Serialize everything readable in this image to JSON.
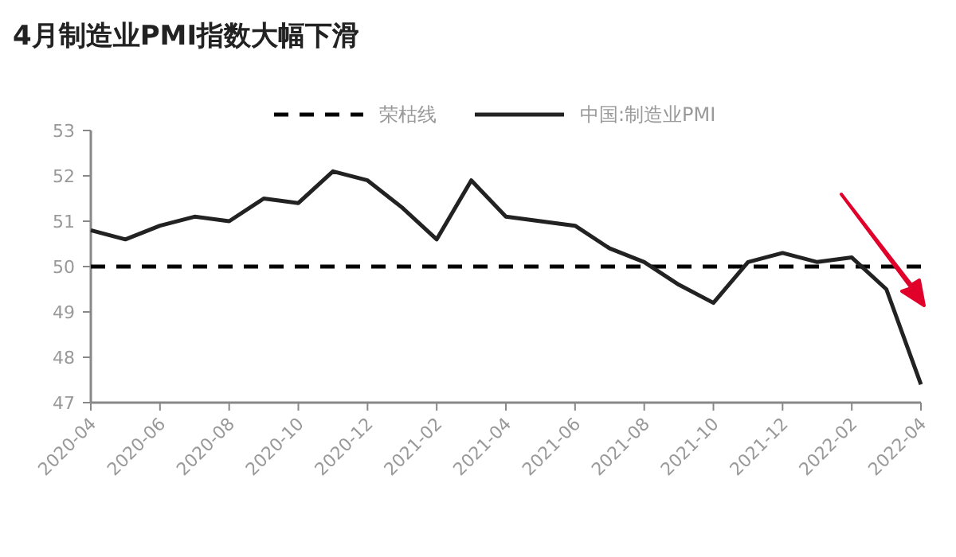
{
  "chart_data": {
    "type": "line",
    "title": "4月制造业PMI指数大幅下滑",
    "categories": [
      "2020-04",
      null,
      "2020-06",
      null,
      "2020-08",
      null,
      "2020-10",
      null,
      "2020-12",
      null,
      "2021-02",
      null,
      "2021-04",
      null,
      "2021-06",
      null,
      "2021-08",
      null,
      "2021-10",
      null,
      "2021-12",
      null,
      "2022-02",
      null,
      "2022-04"
    ],
    "series": [
      {
        "name": "荣枯线",
        "color": "#000000",
        "line_style": "dashed",
        "values": [
          50,
          50,
          50,
          50,
          50,
          50,
          50,
          50,
          50,
          50,
          50,
          50,
          50,
          50,
          50,
          50,
          50,
          50,
          50,
          50,
          50,
          50,
          50,
          50,
          50
        ]
      },
      {
        "name": "中国:制造业PMI",
        "color": "#222222",
        "line_style": "solid",
        "values": [
          50.8,
          50.6,
          50.9,
          51.1,
          51.0,
          51.5,
          51.4,
          52.1,
          51.9,
          51.3,
          50.6,
          51.9,
          51.1,
          51.0,
          50.9,
          50.4,
          50.1,
          49.6,
          49.2,
          50.1,
          50.3,
          50.1,
          50.2,
          49.5,
          47.4
        ]
      }
    ],
    "ylim": [
      47,
      53
    ],
    "yticks": [
      47,
      48,
      49,
      50,
      51,
      52,
      53
    ],
    "legend": "top",
    "grid": false
  }
}
